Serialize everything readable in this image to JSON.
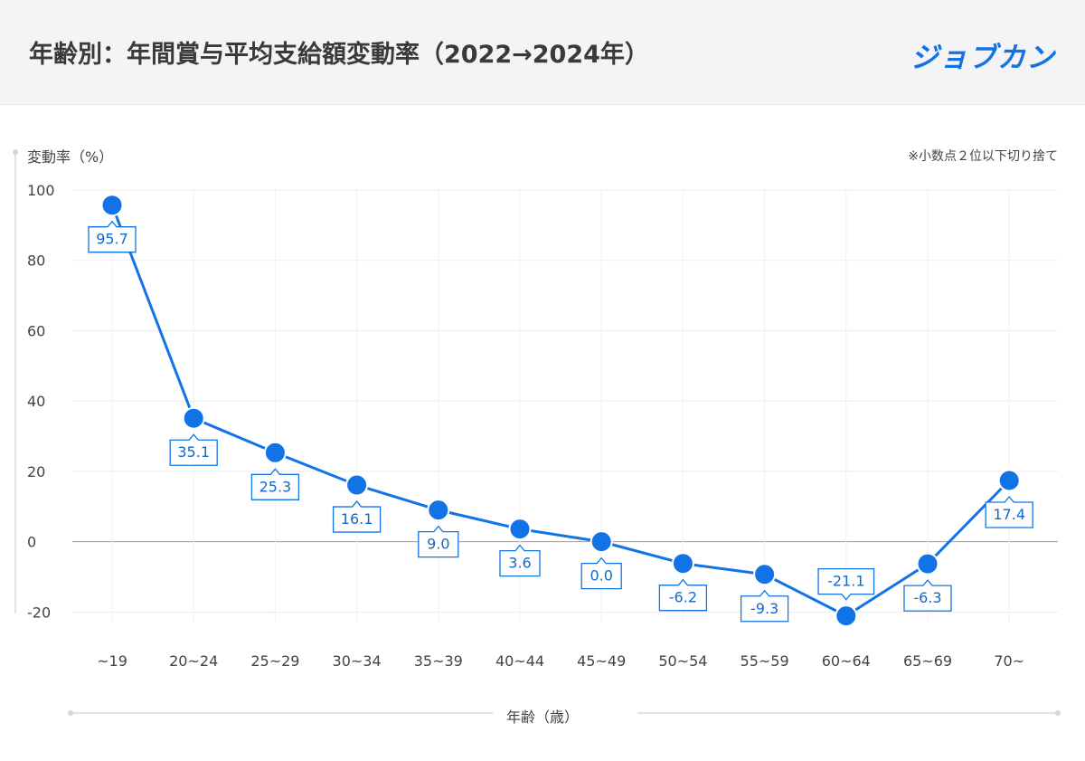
{
  "header": {
    "title": "年齢別：年間賞与平均支給額変動率（2022→2024年）",
    "brand": "ジョブカン"
  },
  "colors": {
    "accent": "#1273e6",
    "label_text": "#1567c8",
    "background": "#f4f4f6",
    "panel": "#ffffff"
  },
  "note": "※小数点２位以下切り捨て",
  "chart_data": {
    "type": "line",
    "title": "年齢別：年間賞与平均支給額変動率（2022→2024年）",
    "ylabel": "変動率（%）",
    "xlabel": "年齢（歳）",
    "categories": [
      "~19",
      "20~24",
      "25~29",
      "30~34",
      "35~39",
      "40~44",
      "45~49",
      "50~54",
      "55~59",
      "60~64",
      "65~69",
      "70~"
    ],
    "series": [
      {
        "values": [
          95.7,
          35.1,
          25.3,
          16.1,
          9.0,
          3.6,
          0.0,
          -6.2,
          -9.3,
          -21.1,
          -6.3,
          17.4
        ]
      }
    ],
    "value_labels": [
      "95.7",
      "35.1",
      "25.3",
      "16.1",
      "9.0",
      "3.6",
      "0.0",
      "-6.2",
      "-9.3",
      "-21.1",
      "-6.3",
      "17.4"
    ],
    "yticks": [
      100,
      80,
      60,
      40,
      20,
      0,
      -20
    ],
    "ylim": [
      -23,
      100
    ],
    "grid": true,
    "legend": "none"
  }
}
